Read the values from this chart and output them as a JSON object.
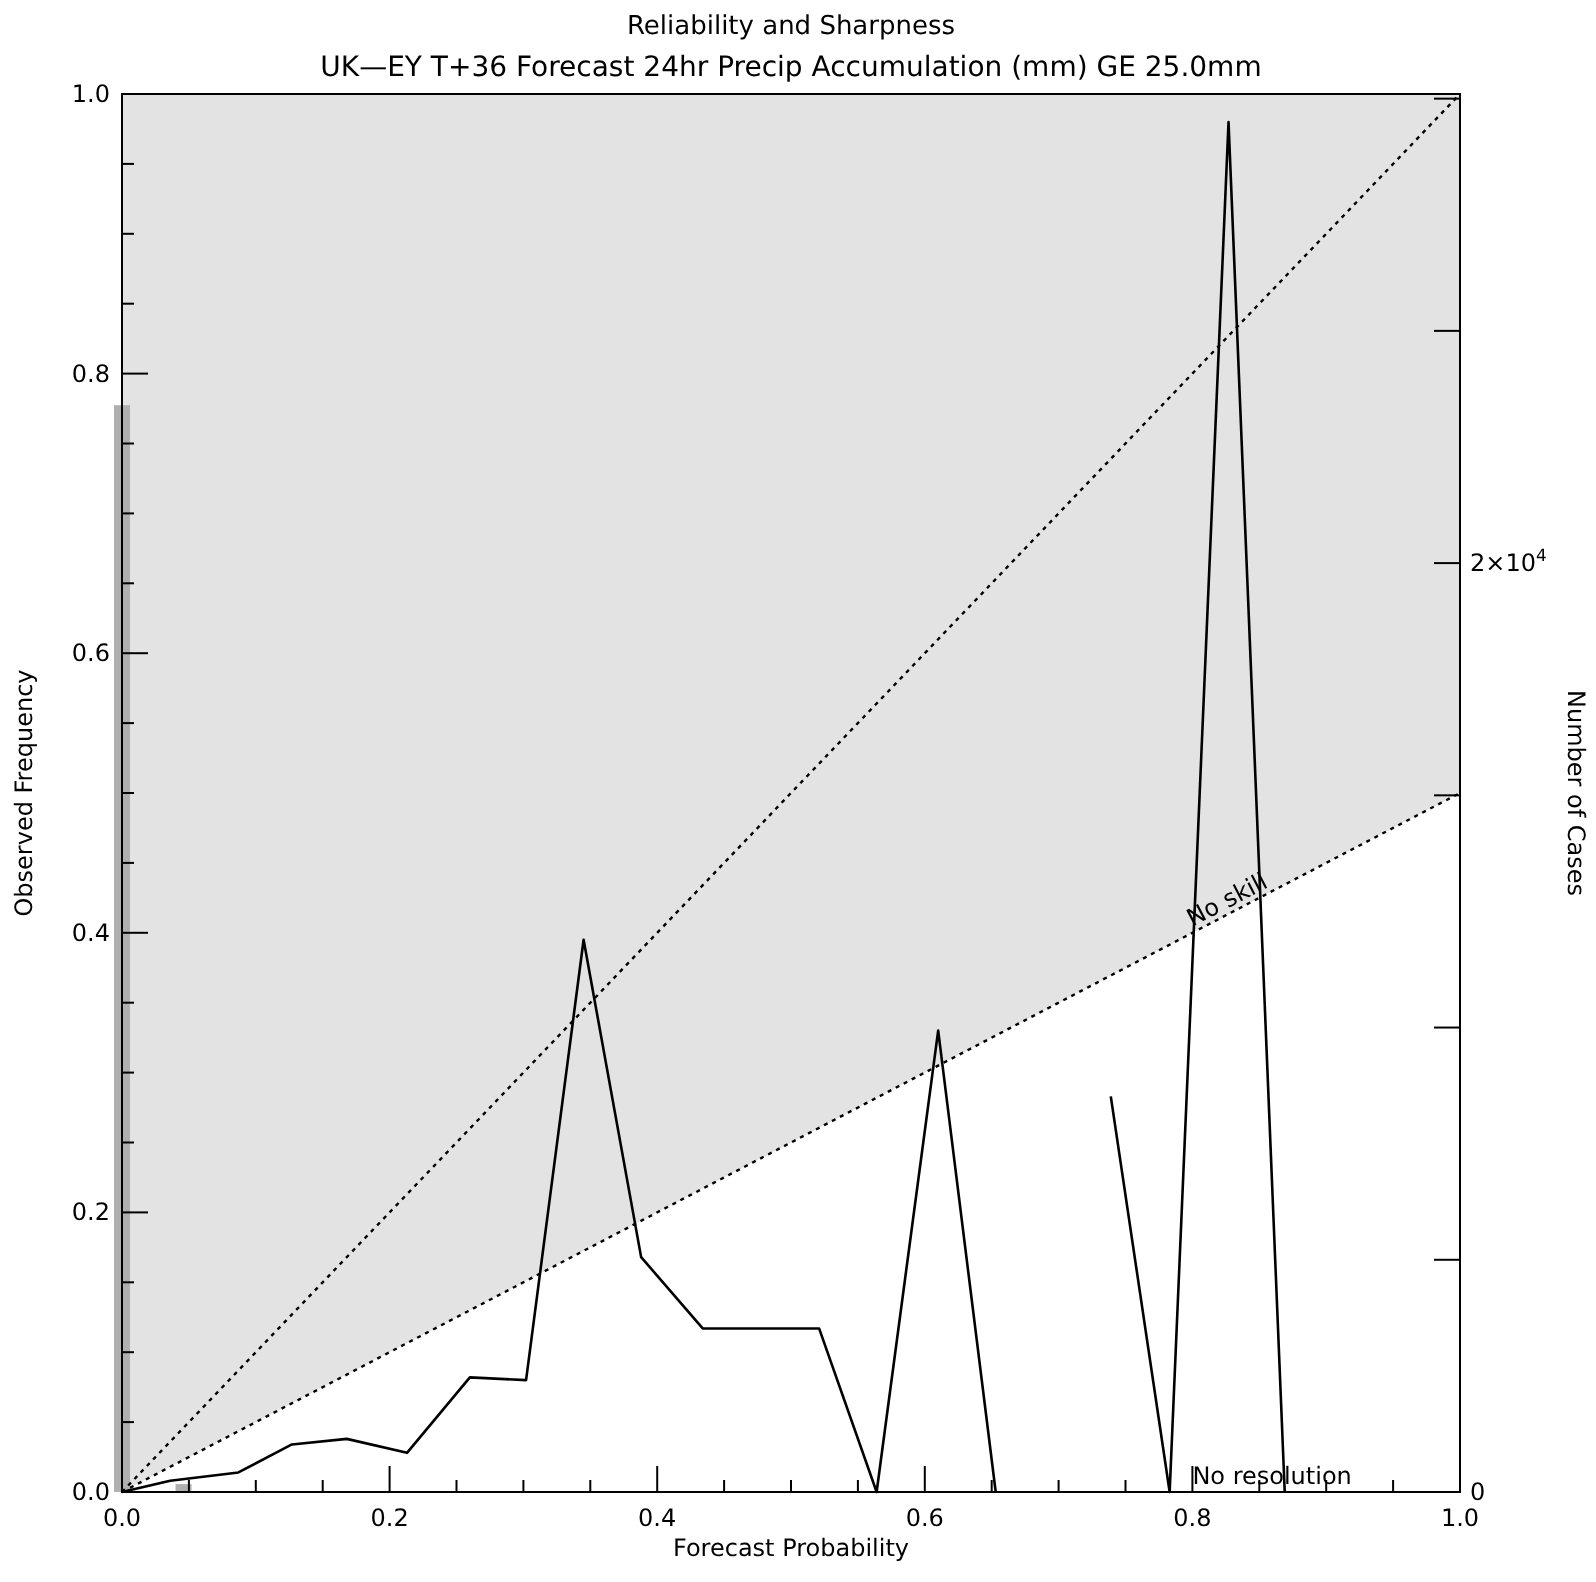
{
  "chart_data": {
    "type": "line",
    "title": "Reliability and Sharpness",
    "subtitle": "UK—EY T+36 Forecast 24hr Precip Accumulation (mm) GE 25.0mm",
    "xlabel": "Forecast Probability",
    "ylabel": "Observed Frequency",
    "y2label": "Number of Cases",
    "xlim": [
      0,
      1
    ],
    "ylim": [
      0,
      1
    ],
    "y2lim": [
      0,
      30100
    ],
    "xticks": [
      {
        "value": 0,
        "label": "0.0"
      },
      {
        "value": 0.05,
        "label": null
      },
      {
        "value": 0.1,
        "label": null
      },
      {
        "value": 0.15,
        "label": null
      },
      {
        "value": 0.2,
        "label": "0.2"
      },
      {
        "value": 0.25,
        "label": null
      },
      {
        "value": 0.3,
        "label": null
      },
      {
        "value": 0.35,
        "label": null
      },
      {
        "value": 0.4,
        "label": "0.4"
      },
      {
        "value": 0.45,
        "label": null
      },
      {
        "value": 0.5,
        "label": null
      },
      {
        "value": 0.55,
        "label": null
      },
      {
        "value": 0.6,
        "label": "0.6"
      },
      {
        "value": 0.65,
        "label": null
      },
      {
        "value": 0.7,
        "label": null
      },
      {
        "value": 0.75,
        "label": null
      },
      {
        "value": 0.8,
        "label": "0.8"
      },
      {
        "value": 0.85,
        "label": null
      },
      {
        "value": 0.9,
        "label": null
      },
      {
        "value": 0.95,
        "label": null
      },
      {
        "value": 1,
        "label": "1.0"
      }
    ],
    "yticks": [
      {
        "value": 0,
        "label": "0.0"
      },
      {
        "value": 0.05,
        "label": null
      },
      {
        "value": 0.1,
        "label": null
      },
      {
        "value": 0.15,
        "label": null
      },
      {
        "value": 0.2,
        "label": "0.2"
      },
      {
        "value": 0.25,
        "label": null
      },
      {
        "value": 0.3,
        "label": null
      },
      {
        "value": 0.35,
        "label": null
      },
      {
        "value": 0.4,
        "label": "0.4"
      },
      {
        "value": 0.45,
        "label": null
      },
      {
        "value": 0.5,
        "label": null
      },
      {
        "value": 0.55,
        "label": null
      },
      {
        "value": 0.6,
        "label": "0.6"
      },
      {
        "value": 0.65,
        "label": null
      },
      {
        "value": 0.7,
        "label": null
      },
      {
        "value": 0.75,
        "label": null
      },
      {
        "value": 0.8,
        "label": "0.8"
      },
      {
        "value": 0.85,
        "label": null
      },
      {
        "value": 0.9,
        "label": null
      },
      {
        "value": 0.95,
        "label": null
      },
      {
        "value": 1,
        "label": "1.0"
      }
    ],
    "y2ticks": [
      0,
      {
        "value": 5000,
        "label": null
      },
      {
        "value": 10000,
        "label": null
      },
      {
        "value": 15000,
        "label": null
      },
      {
        "value": 20000,
        "label": "2×10$^{4}$"
      },
      {
        "value": 25000,
        "label": null
      },
      {
        "value": 30000,
        "label": null
      }
    ],
    "series": [
      {
        "type": "line",
        "color": "#000000",
        "line_style": "dotted",
        "x": [
          0,
          1
        ],
        "values": [
          0,
          0.5
        ],
        "lower": [
          0,
          0.5
        ],
        "upper": [
          1,
          1
        ]
      },
      {
        "type": "bar",
        "axis": "y2",
        "color": "#b0b0b0",
        "x": [
          0,
          0.046
        ],
        "values": [
          23400,
          170
        ]
      },
      {
        "color": "#000000",
        "line_style": "dotted",
        "x": [
          0,
          1
        ],
        "values": [
          0,
          1
        ]
      },
      {
        "color": "#000000",
        "x": [
          0,
          0.036,
          0.087,
          0.127,
          0.168,
          0.213,
          0.26,
          0.302,
          0.345,
          0.388,
          0.434,
          0.521,
          0.564,
          0.61,
          0.653,
          0.7,
          0.739,
          0.783,
          0.827,
          0.869
        ],
        "values": [
          0,
          0.008,
          0.014,
          0.034,
          0.038,
          0.028,
          0.082,
          0.08,
          0.395,
          0.168,
          0.117,
          0.117,
          0,
          0.33,
          0,
          null,
          0.283,
          0,
          0.98,
          0
        ]
      }
    ],
    "annotations": [
      {
        "text": "No skill",
        "x": 0.8,
        "y": 0.4
      },
      "No resolution"
    ]
  }
}
